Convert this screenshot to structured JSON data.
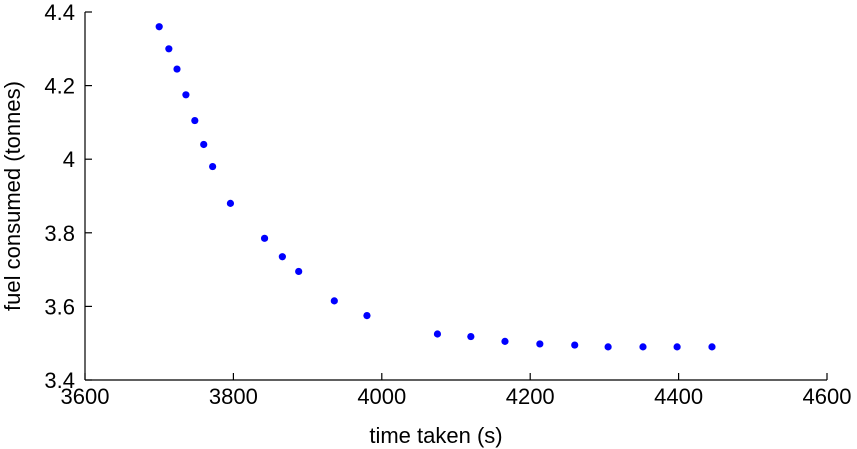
{
  "chart_data": {
    "type": "scatter",
    "xlabel": "time taken (s)",
    "ylabel": "fuel consumed (tonnes)",
    "xlim": [
      3600,
      4600
    ],
    "ylim": [
      3.4,
      4.4
    ],
    "xticks": [
      "3600",
      "3800",
      "4000",
      "4200",
      "4400",
      "4600"
    ],
    "yticks": [
      "3.4",
      "3.6",
      "3.8",
      "4",
      "4.2",
      "4.4"
    ],
    "grid": false,
    "color": "#0000ff",
    "series": [
      {
        "x": [
          3700,
          3713,
          3724,
          3736,
          3748,
          3760,
          3772,
          3796,
          3842,
          3866,
          3888,
          3936,
          3980,
          4075,
          4120,
          4166,
          4213,
          4260,
          4305,
          4352,
          4398,
          4445
        ],
        "y": [
          4.36,
          4.3,
          4.245,
          4.175,
          4.105,
          4.04,
          3.98,
          3.88,
          3.785,
          3.735,
          3.695,
          3.615,
          3.575,
          3.525,
          3.518,
          3.505,
          3.498,
          3.495,
          3.49,
          3.49,
          3.49,
          3.49
        ]
      }
    ]
  }
}
